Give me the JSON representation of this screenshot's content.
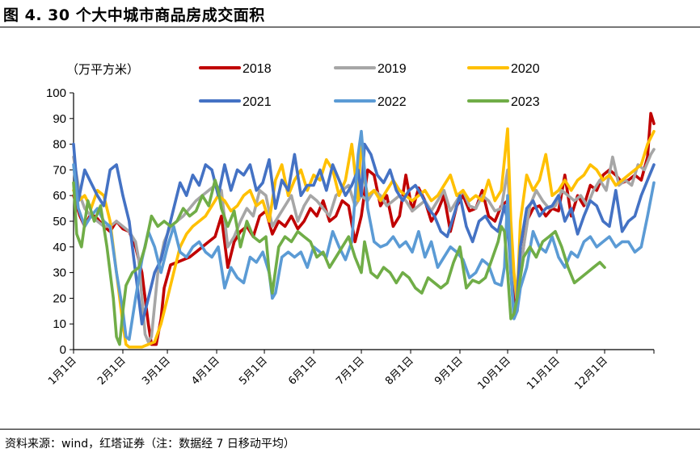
{
  "header": {
    "title": "图 4. 30 个大中城市商品房成交面积"
  },
  "footer": {
    "source": "资料来源：wind，红塔证券（注：数据经 7 日移动平均）"
  },
  "chart_data": {
    "type": "line",
    "unit_label": "（万平方米）",
    "ylim": [
      0,
      100
    ],
    "yticks": [
      "0",
      "10",
      "20",
      "30",
      "40",
      "50",
      "60",
      "70",
      "80",
      "90",
      "100"
    ],
    "x_axis_type": "day-of-year",
    "x_domain": [
      1,
      366
    ],
    "x_ticks": [
      {
        "label": "1月1日",
        "day": 1
      },
      {
        "label": "2月1日",
        "day": 32
      },
      {
        "label": "3月1日",
        "day": 60
      },
      {
        "label": "4月1日",
        "day": 91
      },
      {
        "label": "5月1日",
        "day": 121
      },
      {
        "label": "6月1日",
        "day": 152
      },
      {
        "label": "7月1日",
        "day": 182
      },
      {
        "label": "8月1日",
        "day": 213
      },
      {
        "label": "9月1日",
        "day": 244
      },
      {
        "label": "10月1日",
        "day": 274
      },
      {
        "label": "11月1日",
        "day": 305
      },
      {
        "label": "12月1日",
        "day": 335
      }
    ],
    "grid": false,
    "legend_position": "top",
    "series": [
      {
        "name": "2018",
        "color": "#C00000",
        "x": [
          1,
          5,
          8,
          12,
          16,
          20,
          24,
          28,
          32,
          36,
          40,
          44,
          46,
          48,
          50,
          53,
          56,
          58,
          62,
          66,
          70,
          74,
          78,
          82,
          86,
          90,
          94,
          98,
          102,
          106,
          110,
          114,
          118,
          122,
          126,
          130,
          134,
          138,
          142,
          146,
          150,
          154,
          158,
          162,
          166,
          170,
          174,
          178,
          182,
          186,
          190,
          194,
          198,
          202,
          206,
          210,
          214,
          218,
          222,
          226,
          230,
          234,
          238,
          242,
          246,
          250,
          254,
          258,
          262,
          266,
          270,
          274,
          276,
          278,
          280,
          282,
          286,
          290,
          294,
          298,
          302,
          306,
          310,
          314,
          318,
          322,
          326,
          330,
          334,
          338,
          342,
          346,
          350,
          354,
          358,
          362,
          364,
          366
        ],
        "y": [
          60,
          52,
          48,
          53,
          51,
          48,
          46,
          50,
          47,
          46,
          40,
          30,
          20,
          10,
          2,
          2,
          12,
          24,
          33,
          34,
          35,
          36,
          38,
          40,
          42,
          44,
          52,
          32,
          42,
          46,
          48,
          44,
          52,
          54,
          45,
          50,
          48,
          52,
          47,
          50,
          55,
          52,
          58,
          50,
          52,
          58,
          56,
          42,
          52,
          70,
          68,
          56,
          60,
          48,
          52,
          68,
          54,
          63,
          58,
          50,
          54,
          60,
          46,
          56,
          60,
          54,
          55,
          62,
          52,
          50,
          56,
          58,
          44,
          20,
          15,
          30,
          50,
          55,
          56,
          52,
          55,
          54,
          68,
          52,
          60,
          56,
          64,
          62,
          68,
          70,
          68,
          65,
          66,
          68,
          66,
          75,
          92,
          88
        ]
      },
      {
        "name": "2019",
        "color": "#A6A6A6",
        "x": [
          1,
          5,
          8,
          12,
          16,
          20,
          24,
          28,
          32,
          36,
          40,
          42,
          44,
          46,
          48,
          50,
          54,
          58,
          62,
          66,
          70,
          74,
          78,
          82,
          86,
          90,
          94,
          98,
          102,
          106,
          110,
          114,
          118,
          122,
          126,
          130,
          134,
          138,
          142,
          146,
          150,
          154,
          158,
          162,
          166,
          170,
          174,
          178,
          182,
          186,
          190,
          194,
          198,
          202,
          206,
          210,
          214,
          218,
          222,
          226,
          230,
          234,
          238,
          242,
          246,
          250,
          254,
          258,
          262,
          266,
          270,
          274,
          276,
          278,
          280,
          284,
          288,
          292,
          296,
          300,
          304,
          308,
          312,
          316,
          320,
          324,
          328,
          332,
          336,
          340,
          344,
          348,
          352,
          356,
          360,
          364,
          366
        ],
        "y": [
          75,
          60,
          55,
          52,
          50,
          48,
          48,
          50,
          48,
          46,
          42,
          35,
          20,
          6,
          3,
          5,
          30,
          42,
          48,
          50,
          52,
          55,
          58,
          60,
          62,
          64,
          62,
          40,
          44,
          50,
          55,
          52,
          62,
          60,
          48,
          52,
          56,
          60,
          50,
          56,
          60,
          58,
          55,
          52,
          60,
          62,
          64,
          56,
          60,
          58,
          62,
          60,
          56,
          58,
          60,
          58,
          54,
          56,
          58,
          54,
          58,
          62,
          54,
          58,
          62,
          56,
          55,
          60,
          58,
          54,
          55,
          70,
          46,
          28,
          18,
          40,
          56,
          62,
          58,
          55,
          56,
          62,
          60,
          58,
          60,
          56,
          62,
          66,
          62,
          75,
          64,
          66,
          64,
          72,
          70,
          76,
          78
        ]
      },
      {
        "name": "2020",
        "color": "#FFC000",
        "x": [
          1,
          4,
          8,
          12,
          16,
          20,
          24,
          28,
          32,
          34,
          36,
          40,
          44,
          48,
          52,
          56,
          60,
          64,
          68,
          72,
          76,
          80,
          84,
          88,
          92,
          96,
          100,
          104,
          108,
          112,
          116,
          120,
          124,
          128,
          132,
          136,
          140,
          144,
          148,
          152,
          156,
          160,
          164,
          168,
          172,
          176,
          180,
          182,
          184,
          186,
          190,
          194,
          198,
          202,
          206,
          210,
          214,
          218,
          222,
          226,
          230,
          234,
          238,
          242,
          246,
          250,
          254,
          258,
          262,
          266,
          270,
          272,
          274,
          276,
          278,
          280,
          282,
          286,
          290,
          294,
          298,
          302,
          306,
          310,
          314,
          318,
          322,
          326,
          330,
          334,
          338,
          342,
          346,
          350,
          354,
          358,
          362,
          366
        ],
        "y": [
          62,
          58,
          60,
          55,
          62,
          60,
          50,
          30,
          10,
          2,
          1,
          1,
          1,
          2,
          3,
          10,
          20,
          30,
          40,
          45,
          48,
          50,
          52,
          56,
          60,
          58,
          54,
          56,
          60,
          62,
          56,
          58,
          50,
          66,
          72,
          60,
          66,
          70,
          62,
          68,
          66,
          74,
          70,
          60,
          66,
          80,
          58,
          84,
          66,
          60,
          62,
          58,
          62,
          66,
          62,
          60,
          58,
          60,
          62,
          58,
          60,
          64,
          68,
          60,
          62,
          58,
          60,
          58,
          66,
          58,
          62,
          74,
          86,
          50,
          30,
          20,
          50,
          68,
          62,
          66,
          76,
          60,
          62,
          66,
          62,
          66,
          68,
          72,
          70,
          66,
          68,
          64,
          66,
          68,
          70,
          72,
          80,
          85
        ]
      },
      {
        "name": "2021",
        "color": "#4472C4",
        "x": [
          1,
          4,
          8,
          12,
          16,
          20,
          24,
          28,
          32,
          36,
          40,
          44,
          48,
          52,
          56,
          60,
          64,
          68,
          72,
          76,
          80,
          84,
          88,
          92,
          96,
          100,
          104,
          108,
          112,
          116,
          120,
          124,
          128,
          132,
          136,
          140,
          144,
          148,
          152,
          156,
          160,
          164,
          168,
          172,
          176,
          180,
          182,
          184,
          188,
          192,
          196,
          200,
          204,
          208,
          212,
          216,
          220,
          224,
          228,
          232,
          236,
          240,
          244,
          248,
          252,
          256,
          260,
          264,
          268,
          272,
          274,
          276,
          278,
          280,
          282,
          286,
          290,
          294,
          298,
          302,
          306,
          310,
          314,
          318,
          322,
          326,
          330,
          334,
          338,
          342,
          346,
          350,
          354,
          358,
          362,
          366
        ],
        "y": [
          80,
          58,
          70,
          65,
          60,
          56,
          70,
          72,
          60,
          50,
          30,
          10,
          20,
          30,
          35,
          45,
          55,
          65,
          60,
          68,
          64,
          72,
          70,
          60,
          72,
          62,
          70,
          68,
          72,
          62,
          65,
          74,
          55,
          66,
          62,
          76,
          60,
          64,
          64,
          70,
          62,
          72,
          66,
          60,
          64,
          70,
          60,
          80,
          76,
          68,
          65,
          70,
          62,
          58,
          62,
          64,
          60,
          55,
          52,
          46,
          44,
          52,
          60,
          48,
          42,
          50,
          52,
          48,
          46,
          56,
          50,
          30,
          14,
          20,
          40,
          55,
          58,
          52,
          55,
          56,
          60,
          50,
          55,
          45,
          52,
          58,
          56,
          50,
          48,
          62,
          46,
          50,
          52,
          60,
          66,
          72
        ]
      },
      {
        "name": "2022",
        "color": "#5B9BD5",
        "x": [
          1,
          4,
          8,
          12,
          16,
          20,
          24,
          28,
          32,
          34,
          36,
          40,
          44,
          48,
          52,
          56,
          60,
          64,
          68,
          72,
          76,
          80,
          84,
          88,
          92,
          96,
          100,
          104,
          108,
          112,
          116,
          120,
          124,
          126,
          128,
          132,
          136,
          140,
          144,
          148,
          152,
          156,
          160,
          164,
          168,
          172,
          176,
          180,
          182,
          186,
          190,
          194,
          198,
          202,
          206,
          210,
          214,
          218,
          222,
          226,
          230,
          234,
          238,
          242,
          246,
          250,
          254,
          258,
          262,
          266,
          270,
          272,
          274,
          276,
          278,
          280,
          282,
          286,
          290,
          294,
          298,
          302,
          306,
          310,
          314,
          318,
          322,
          326,
          330,
          334,
          338,
          342,
          346,
          350,
          354,
          358,
          362,
          366
        ],
        "y": [
          72,
          55,
          48,
          52,
          55,
          50,
          48,
          30,
          15,
          5,
          4,
          20,
          35,
          46,
          40,
          30,
          40,
          48,
          38,
          36,
          40,
          42,
          38,
          36,
          40,
          24,
          32,
          28,
          26,
          36,
          34,
          38,
          30,
          20,
          22,
          36,
          38,
          36,
          38,
          32,
          40,
          38,
          36,
          46,
          40,
          35,
          42,
          76,
          85,
          55,
          42,
          40,
          41,
          44,
          40,
          42,
          38,
          46,
          36,
          42,
          32,
          36,
          40,
          38,
          35,
          28,
          30,
          35,
          33,
          26,
          25,
          32,
          60,
          30,
          12,
          15,
          24,
          32,
          46,
          40,
          38,
          44,
          36,
          32,
          38,
          36,
          42,
          44,
          40,
          42,
          44,
          40,
          42,
          42,
          38,
          40,
          52,
          65
        ]
      },
      {
        "name": "2023",
        "color": "#70AD47",
        "x": [
          1,
          3,
          6,
          10,
          14,
          18,
          22,
          26,
          28,
          30,
          32,
          34,
          38,
          42,
          46,
          50,
          54,
          58,
          62,
          66,
          70,
          74,
          78,
          82,
          86,
          90,
          92,
          94,
          98,
          102,
          106,
          110,
          114,
          118,
          122,
          124,
          126,
          130,
          134,
          138,
          142,
          146,
          150,
          154,
          158,
          162,
          166,
          170,
          174,
          178,
          182,
          184,
          188,
          192,
          196,
          200,
          204,
          208,
          212,
          216,
          220,
          224,
          228,
          232,
          236,
          240,
          244,
          248,
          252,
          256,
          260,
          264,
          268,
          270,
          272,
          274,
          276,
          278,
          280,
          284,
          288,
          292,
          296,
          300,
          304,
          308,
          312,
          316,
          320,
          324,
          328,
          332,
          335
        ],
        "y": [
          65,
          45,
          40,
          58,
          50,
          56,
          40,
          20,
          5,
          2,
          15,
          25,
          30,
          32,
          40,
          52,
          48,
          50,
          48,
          50,
          55,
          52,
          54,
          60,
          56,
          66,
          62,
          55,
          48,
          54,
          40,
          50,
          44,
          42,
          44,
          30,
          22,
          40,
          44,
          42,
          46,
          44,
          42,
          36,
          38,
          32,
          36,
          40,
          44,
          36,
          30,
          42,
          30,
          28,
          32,
          30,
          26,
          30,
          28,
          24,
          22,
          28,
          26,
          24,
          26,
          34,
          40,
          24,
          27,
          26,
          28,
          35,
          42,
          48,
          46,
          30,
          12,
          14,
          20,
          36,
          40,
          36,
          42,
          44,
          46,
          40,
          32,
          26,
          28,
          30,
          32,
          34,
          32
        ]
      }
    ]
  }
}
